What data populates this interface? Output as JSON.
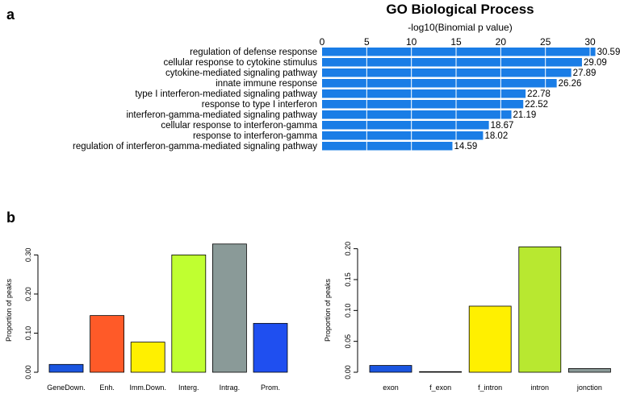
{
  "panels": {
    "a": "a",
    "b": "b"
  },
  "chart_data": [
    {
      "type": "bar",
      "orientation": "horizontal",
      "title": "GO Biological Process",
      "xlabel": "-log10(Binomial p value)",
      "xlim": [
        0,
        30.9
      ],
      "xticks": [
        0,
        5,
        10,
        15,
        20,
        25,
        30
      ],
      "grid": true,
      "bar_color": "#1a7de6",
      "categories": [
        "regulation of defense response",
        "cellular response to cytokine stimulus",
        "cytokine-mediated signaling pathway",
        "innate immune response",
        "type I interferon-mediated signaling pathway",
        "response to type I interferon",
        "interferon-gamma-mediated signaling pathway",
        "cellular response to interferon-gamma",
        "response to interferon-gamma",
        "regulation of interferon-gamma-mediated signaling pathway"
      ],
      "values": [
        30.59,
        29.09,
        27.89,
        26.26,
        22.78,
        22.52,
        21.19,
        18.67,
        18.02,
        14.59
      ],
      "value_labels": [
        "30.59",
        "29.09",
        "27.89",
        "26.26",
        "22.78",
        "22.52",
        "21.19",
        "18.67",
        "18.02",
        "14.59"
      ]
    },
    {
      "type": "bar",
      "ylabel": "Proportion of peaks",
      "ylim": [
        0,
        0.34
      ],
      "yticks": [
        0.0,
        0.1,
        0.2,
        0.3
      ],
      "ytick_labels": [
        "0.00",
        "0.10",
        "0.20",
        "0.30"
      ],
      "categories": [
        "GeneDown.",
        "Enh.",
        "Imm.Down.",
        "Interg.",
        "Intrag.",
        "Prom."
      ],
      "values": [
        0.02,
        0.145,
        0.077,
        0.3,
        0.328,
        0.125
      ],
      "colors": [
        "#1a55e0",
        "#ff5a28",
        "#fff000",
        "#c0ff30",
        "#8a9a98",
        "#1f4ff0"
      ]
    },
    {
      "type": "bar",
      "ylabel": "Proportion of peaks",
      "ylim": [
        0,
        0.21
      ],
      "yticks": [
        0.0,
        0.05,
        0.1,
        0.15,
        0.2
      ],
      "ytick_labels": [
        "0.00",
        "0.05",
        "0.10",
        "0.15",
        "0.20"
      ],
      "categories": [
        "exon",
        "f_exon",
        "f_intron",
        "intron",
        "jonction"
      ],
      "values": [
        0.011,
        0.001,
        0.107,
        0.203,
        0.006
      ],
      "colors": [
        "#1a55e0",
        "#ff5a28",
        "#fff000",
        "#b8e830",
        "#8a9a98"
      ]
    }
  ]
}
